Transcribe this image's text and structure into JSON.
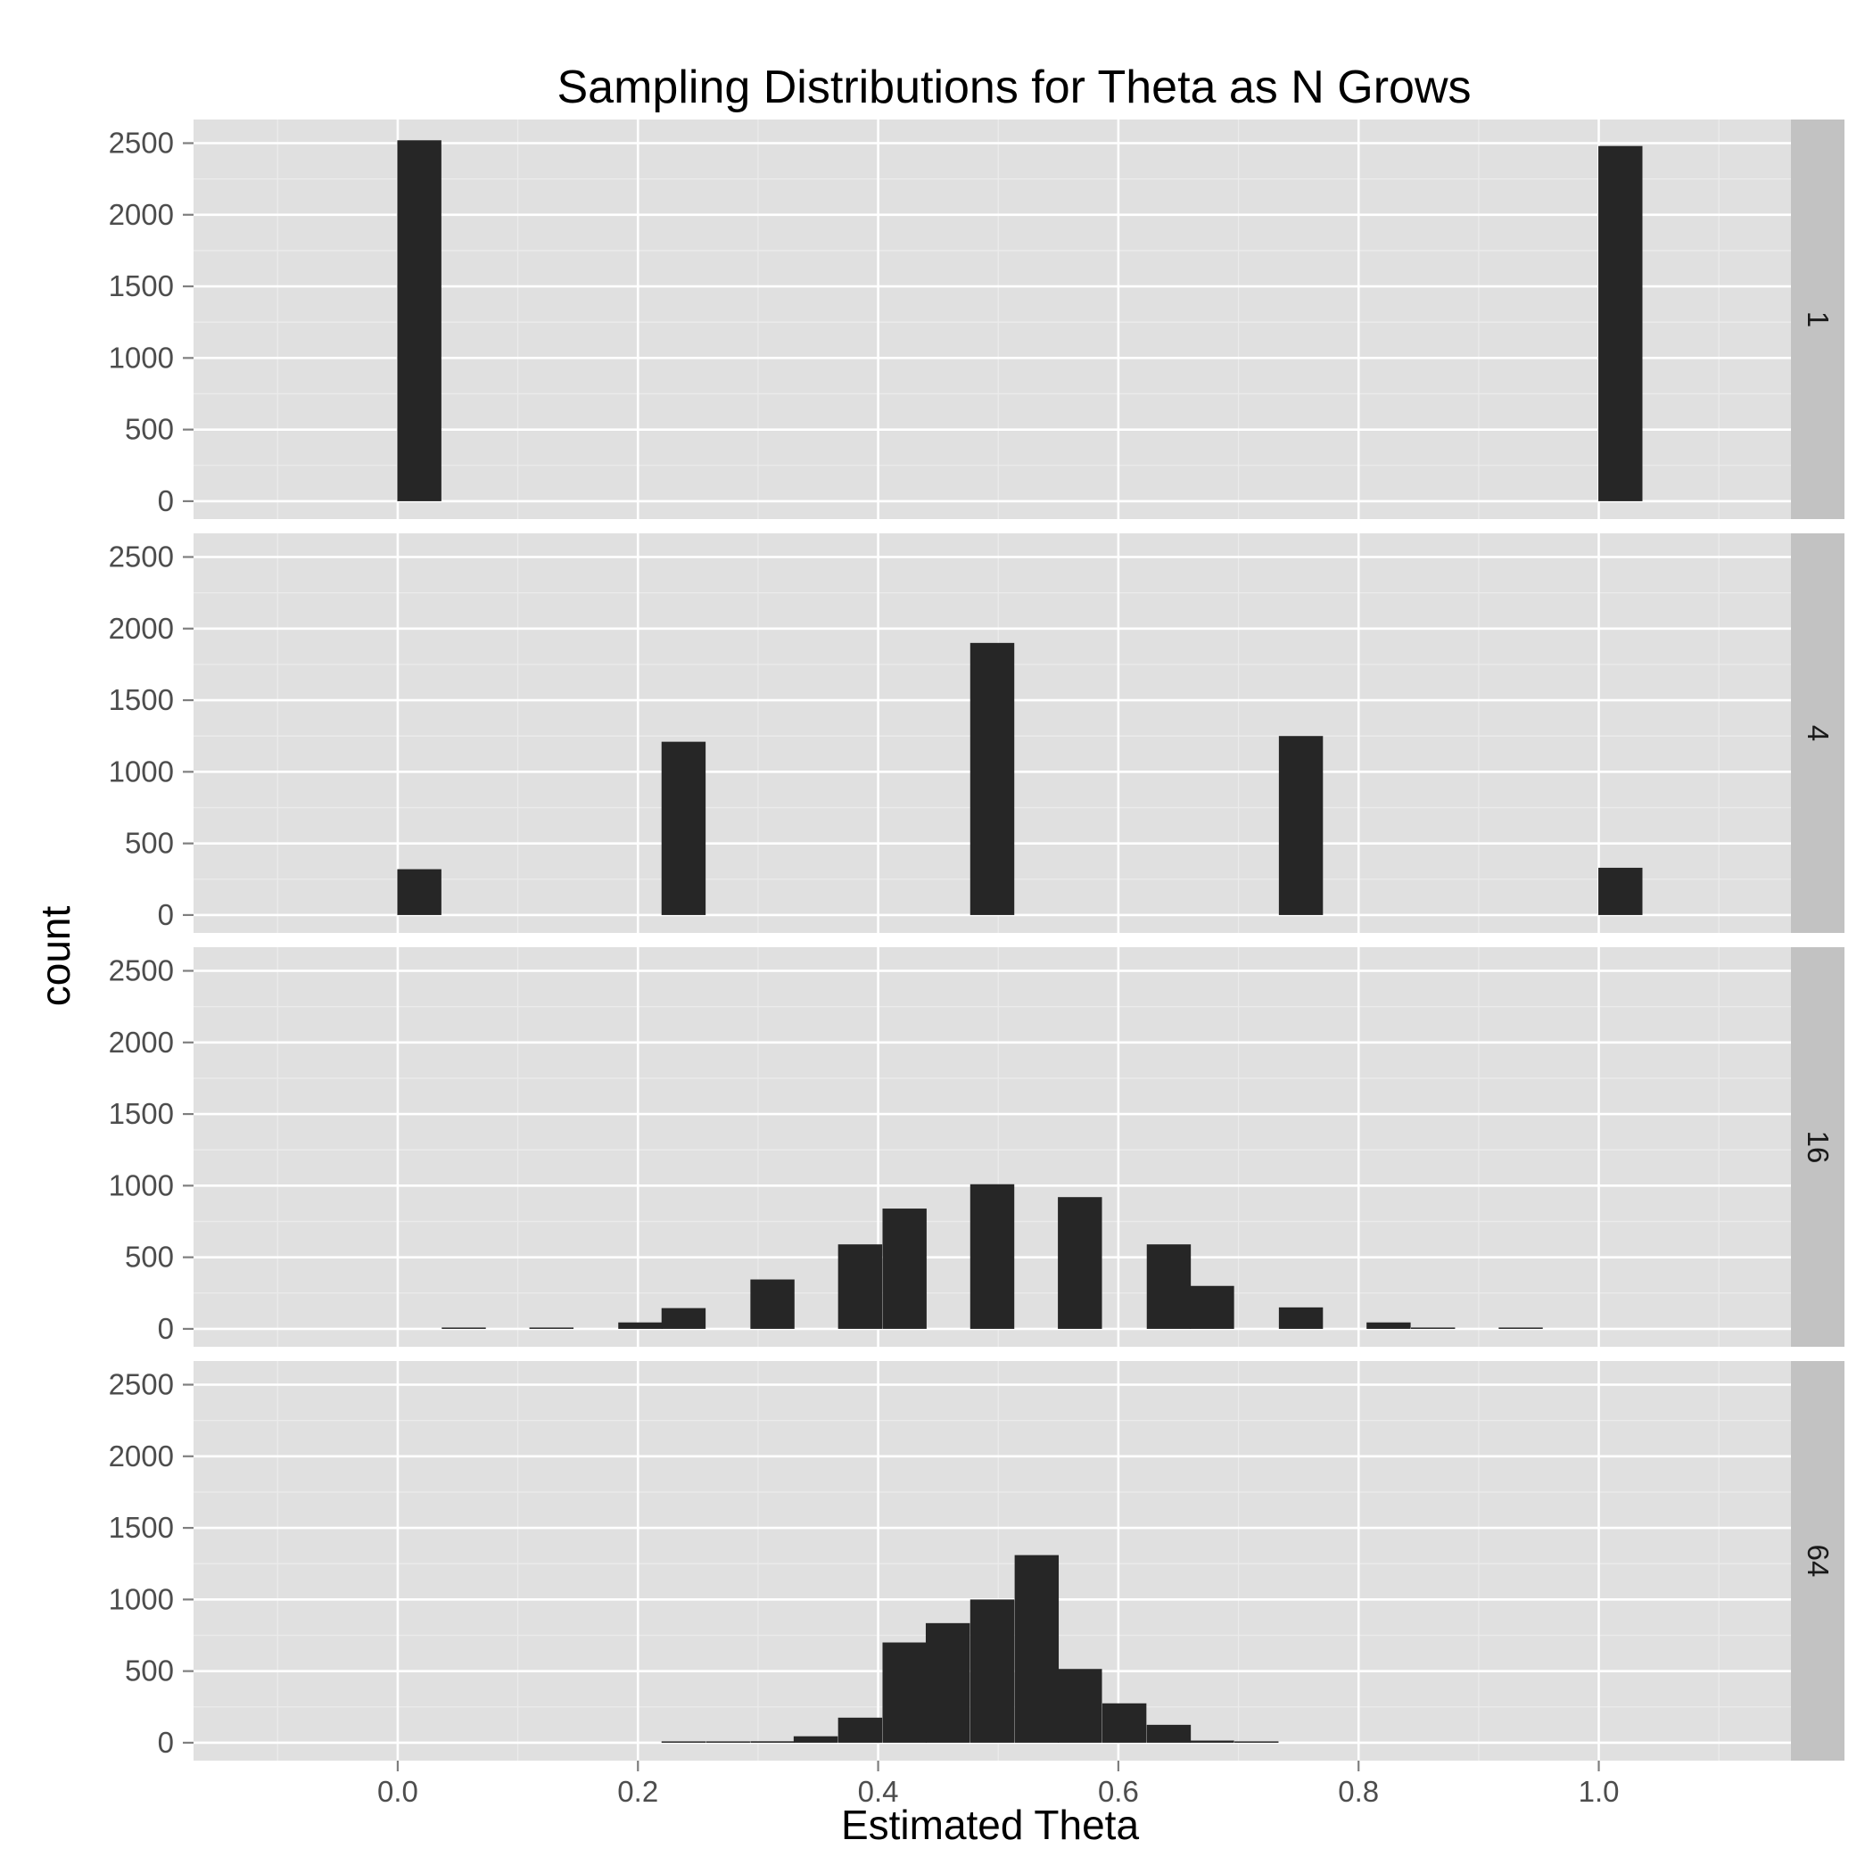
{
  "chart_data": {
    "type": "bar",
    "title": "Sampling Distributions for Theta as N Grows",
    "xlabel": "Estimated Theta",
    "ylabel": "count",
    "xlim": [
      -0.17,
      1.16
    ],
    "ylim": [
      -125,
      2665
    ],
    "x_ticks": [
      "0.0",
      "0.2",
      "0.4",
      "0.6",
      "0.8",
      "1.0"
    ],
    "y_ticks": [
      "0",
      "500",
      "1000",
      "1500",
      "2000",
      "2500"
    ],
    "binwidth": 0.0367,
    "grid": true,
    "facet_strip_position": "right",
    "facets": [
      {
        "label": "1",
        "bars": [
          {
            "x": 0.018,
            "count": 2520
          },
          {
            "x": 1.018,
            "count": 2480
          }
        ]
      },
      {
        "label": "4",
        "bars": [
          {
            "x": 0.018,
            "count": 320
          },
          {
            "x": 0.238,
            "count": 1210
          },
          {
            "x": 0.495,
            "count": 1900
          },
          {
            "x": 0.752,
            "count": 1250
          },
          {
            "x": 1.018,
            "count": 330
          }
        ]
      },
      {
        "label": "16",
        "bars": [
          {
            "x": 0.055,
            "count": 2
          },
          {
            "x": 0.128,
            "count": 8
          },
          {
            "x": 0.202,
            "count": 45
          },
          {
            "x": 0.238,
            "count": 145
          },
          {
            "x": 0.312,
            "count": 345
          },
          {
            "x": 0.385,
            "count": 590
          },
          {
            "x": 0.422,
            "count": 840
          },
          {
            "x": 0.495,
            "count": 1010
          },
          {
            "x": 0.568,
            "count": 920
          },
          {
            "x": 0.642,
            "count": 590
          },
          {
            "x": 0.678,
            "count": 300
          },
          {
            "x": 0.752,
            "count": 150
          },
          {
            "x": 0.825,
            "count": 45
          },
          {
            "x": 0.862,
            "count": 8
          },
          {
            "x": 0.935,
            "count": 2
          }
        ]
      },
      {
        "label": "64",
        "bars": [
          {
            "x": 0.238,
            "count": 2
          },
          {
            "x": 0.275,
            "count": 2
          },
          {
            "x": 0.312,
            "count": 10
          },
          {
            "x": 0.348,
            "count": 45
          },
          {
            "x": 0.385,
            "count": 175
          },
          {
            "x": 0.422,
            "count": 700
          },
          {
            "x": 0.458,
            "count": 835
          },
          {
            "x": 0.495,
            "count": 1000
          },
          {
            "x": 0.532,
            "count": 1310
          },
          {
            "x": 0.568,
            "count": 515
          },
          {
            "x": 0.605,
            "count": 275
          },
          {
            "x": 0.642,
            "count": 125
          },
          {
            "x": 0.678,
            "count": 15
          },
          {
            "x": 0.715,
            "count": 8
          }
        ]
      }
    ],
    "colors": {
      "panel_background": "#e0e0e0",
      "grid_major": "#ffffff",
      "grid_minor": "#ebebeb",
      "bar_fill": "#262626",
      "strip_background": "#c2c2c2",
      "tick_label": "#4d4d4d"
    }
  }
}
